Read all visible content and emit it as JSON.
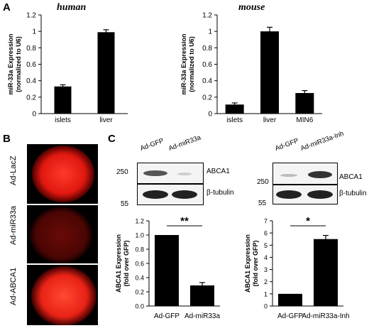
{
  "panels": {
    "a_letter": "A",
    "b_letter": "B",
    "c_letter": "C"
  },
  "species": {
    "human": "human",
    "mouse": "mouse"
  },
  "chart_data": [
    {
      "type": "bar",
      "panel": "A-human",
      "ylabel": "miR-33a Expression (normalized to U6)",
      "ylabel_lines": [
        "miR-33a Expression",
        "(normalized to U6)"
      ],
      "categories": [
        "islets",
        "liver"
      ],
      "values": [
        0.33,
        0.99
      ],
      "errors": [
        0.02,
        0.03
      ],
      "ylim": [
        0,
        1.2
      ],
      "yticks": [
        0,
        0.2,
        0.4,
        0.6,
        0.8,
        1,
        1.2
      ],
      "ytick_labels": [
        "0",
        "0.2",
        "0.4",
        "0.6",
        "0.8",
        "1",
        "1.2"
      ],
      "color": "#000000"
    },
    {
      "type": "bar",
      "panel": "A-mouse",
      "ylabel": "miR-33a Expression (normalized to U6)",
      "ylabel_lines": [
        "miR-33a Expression",
        "(normalized to U6)"
      ],
      "categories": [
        "islets",
        "liver",
        "MIN6"
      ],
      "values": [
        0.11,
        1.0,
        0.25
      ],
      "errors": [
        0.02,
        0.05,
        0.03
      ],
      "ylim": [
        0,
        1.2
      ],
      "yticks": [
        0,
        0.2,
        0.4,
        0.6,
        0.8,
        1,
        1.2
      ],
      "ytick_labels": [
        "0",
        "0.2",
        "0.4",
        "0.6",
        "0.8",
        "1",
        "1.2"
      ],
      "color": "#000000"
    },
    {
      "type": "bar",
      "panel": "C-left",
      "ylabel": "ABCA1 Expression (fold over GFP)",
      "ylabel_lines": [
        "ABCA1 Expression",
        "(fold over GFP)"
      ],
      "categories": [
        "Ad-GFP",
        "Ad-miR33a"
      ],
      "values": [
        1.0,
        0.29
      ],
      "errors": [
        0,
        0.04
      ],
      "ylim": [
        0,
        1.2
      ],
      "yticks": [
        0,
        0.2,
        0.4,
        0.6,
        0.8,
        1.0,
        1.2
      ],
      "ytick_labels": [
        "0.0",
        "0.2",
        "0.4",
        "0.6",
        "0.8",
        "1.0",
        "1.2"
      ],
      "significance": "**",
      "color": "#000000"
    },
    {
      "type": "bar",
      "panel": "C-right",
      "ylabel": "ABCA1 Expression (fold over GFP)",
      "ylabel_lines": [
        "ABCA1 Expression",
        "(fold over GFP)"
      ],
      "categories": [
        "Ad-GFP",
        "Ad-miR33a-Inh"
      ],
      "values": [
        1.0,
        5.5
      ],
      "errors": [
        0,
        0.3
      ],
      "ylim": [
        0,
        7
      ],
      "yticks": [
        0,
        1,
        2,
        3,
        4,
        5,
        6,
        7
      ],
      "ytick_labels": [
        "0",
        "1",
        "2",
        "3",
        "4",
        "5",
        "6",
        "7"
      ],
      "significance": "*",
      "color": "#000000"
    }
  ],
  "micrographs": [
    {
      "label": "Ad-LacZ",
      "intensity": "bright"
    },
    {
      "label": "Ad-miR33a",
      "intensity": "dim"
    },
    {
      "label": "Ad-ABCA1",
      "intensity": "bright"
    }
  ],
  "blots": {
    "left": {
      "lanes": [
        "Ad-GFP",
        "Ad-miR33a"
      ],
      "mw_top": "250",
      "mw_bottom": "55",
      "band_top": "ABCA1",
      "band_bottom": "β-tubulin"
    },
    "right": {
      "lanes": [
        "Ad-GFP",
        "Ad-miR33a-Inh"
      ],
      "mw_top": "250",
      "mw_bottom": "55",
      "band_top": "ABCA1",
      "band_bottom": "β-tubulin"
    }
  }
}
